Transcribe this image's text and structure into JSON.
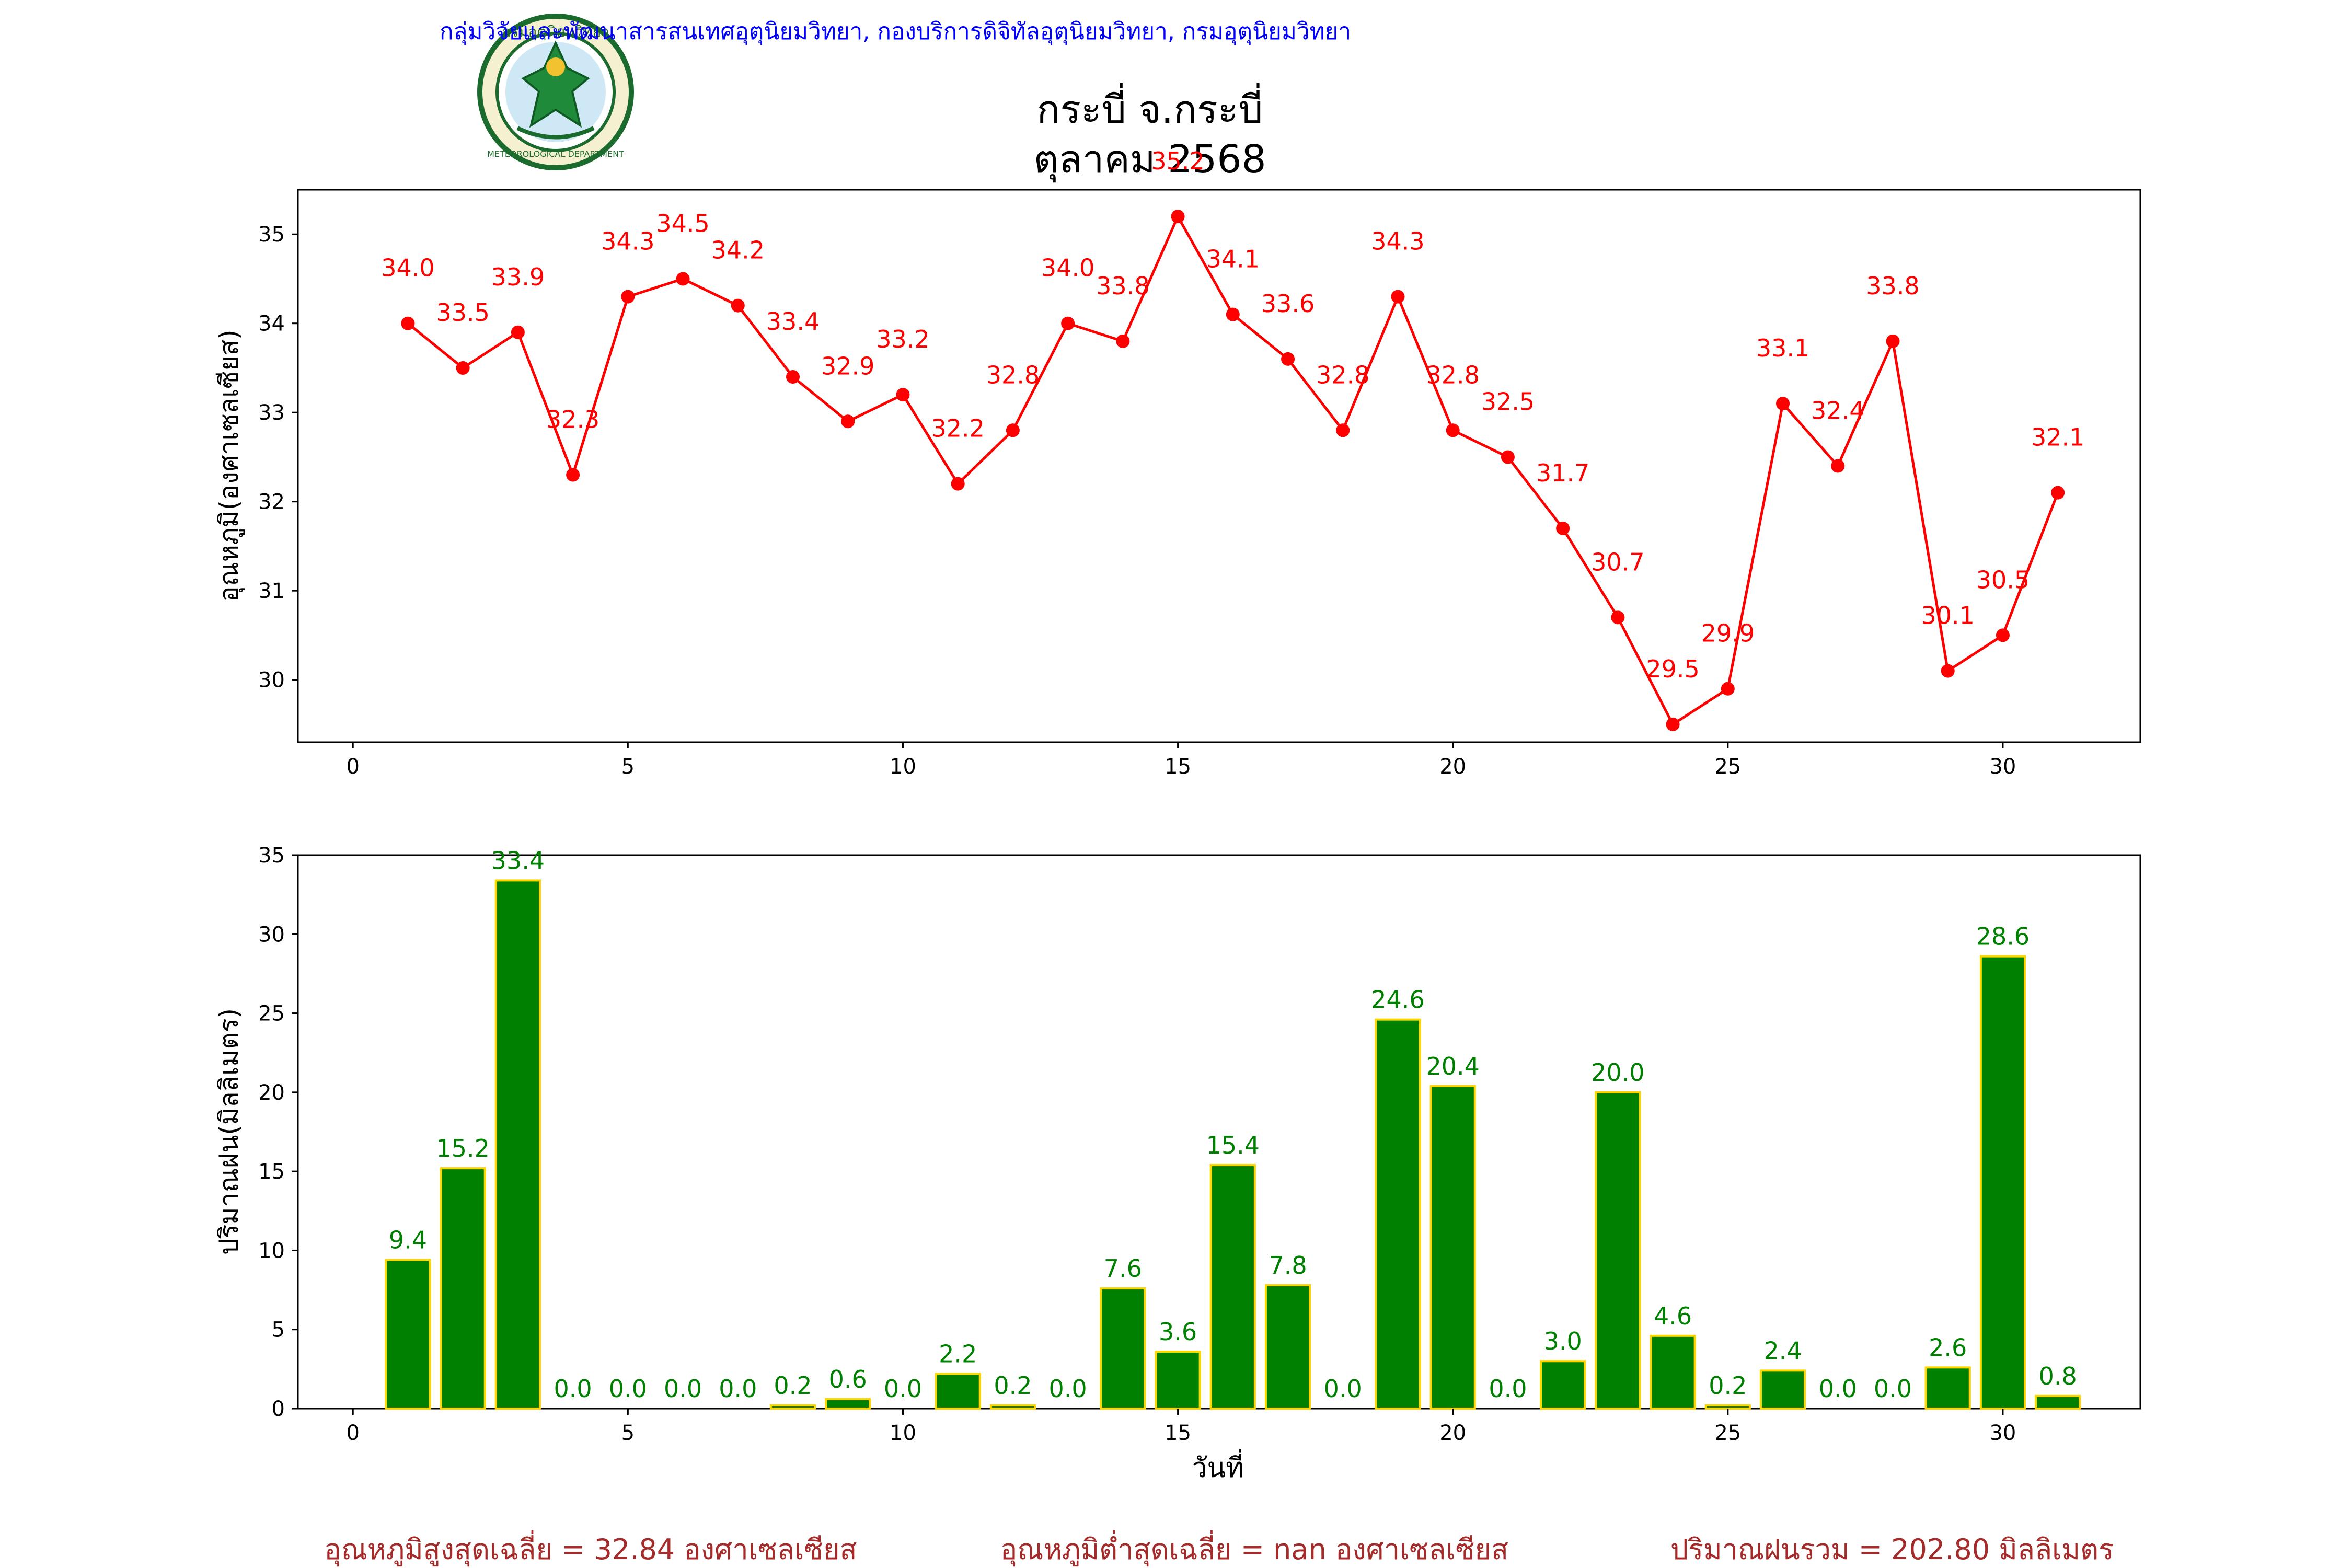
{
  "header": {
    "organization": "กลุ่มวิจัยและพัฒนาสารสนเทศอุตุนิยมวิทยา, กองบริการดิจิทัลอุตุนิยมวิทยา, กรมอุตุนิยมวิทยา",
    "station": "กระบี่ จ.กระบี่",
    "period": "ตุลาคม 2568",
    "logo_text_top": "กรมอุตุนิยมวิทยา",
    "logo_text_bottom": "METEOROLOGICAL DEPARTMENT"
  },
  "colors": {
    "header_text": "#0000ff",
    "temperature": "#ff0000",
    "rain_bar": "#008000",
    "rain_edge": "#ffd700",
    "rain_label": "#008000",
    "summary": "#a52a2a"
  },
  "chart_data": [
    {
      "type": "line",
      "ylabel": "อุณหภูมิ(องศาเซลเซียส)",
      "xlabel": "",
      "xlim": [
        -1,
        32.5
      ],
      "ylim": [
        29.3,
        35.5
      ],
      "xticks": [
        0,
        5,
        10,
        15,
        20,
        25,
        30
      ],
      "yticks": [
        30,
        31,
        32,
        33,
        34,
        35
      ],
      "x": [
        1,
        2,
        3,
        4,
        5,
        6,
        7,
        8,
        9,
        10,
        11,
        12,
        13,
        14,
        15,
        16,
        17,
        18,
        19,
        20,
        21,
        22,
        23,
        24,
        25,
        26,
        27,
        28,
        29,
        30,
        31
      ],
      "values": [
        34.0,
        33.5,
        33.9,
        32.3,
        34.3,
        34.5,
        34.2,
        33.4,
        32.9,
        33.2,
        32.2,
        32.8,
        34.0,
        33.8,
        35.2,
        34.1,
        33.6,
        32.8,
        34.3,
        32.8,
        32.5,
        31.7,
        30.7,
        29.5,
        29.9,
        33.1,
        32.4,
        33.8,
        30.1,
        30.5,
        32.1
      ],
      "labels": [
        "34.0",
        "33.5",
        "33.9",
        "32.3",
        "34.3",
        "34.5",
        "34.2",
        "33.4",
        "32.9",
        "33.2",
        "32.2",
        "32.8",
        "34.0",
        "33.8",
        "35.2",
        "34.1",
        "33.6",
        "32.8",
        "34.3",
        "32.8",
        "32.5",
        "31.7",
        "30.7",
        "29.5",
        "29.9",
        "33.1",
        "32.4",
        "33.8",
        "30.1",
        "30.5",
        "32.1"
      ],
      "grid": false
    },
    {
      "type": "bar",
      "ylabel": "ปริมาณฝน(มิลลิเมตร)",
      "xlabel": "วันที่",
      "xlim": [
        -1,
        32.5
      ],
      "ylim": [
        0,
        35
      ],
      "xticks": [
        0,
        5,
        10,
        15,
        20,
        25,
        30
      ],
      "yticks": [
        0,
        5,
        10,
        15,
        20,
        25,
        30,
        35
      ],
      "x": [
        1,
        2,
        3,
        4,
        5,
        6,
        7,
        8,
        9,
        10,
        11,
        12,
        13,
        14,
        15,
        16,
        17,
        18,
        19,
        20,
        21,
        22,
        23,
        24,
        25,
        26,
        27,
        28,
        29,
        30,
        31
      ],
      "values": [
        9.4,
        15.2,
        33.4,
        0.0,
        0.0,
        0.0,
        0.0,
        0.2,
        0.6,
        0.0,
        2.2,
        0.2,
        0.0,
        7.6,
        3.6,
        15.4,
        7.8,
        0.0,
        24.6,
        20.4,
        0.0,
        3.0,
        20.0,
        4.6,
        0.2,
        2.4,
        0.0,
        0.0,
        2.6,
        28.6,
        0.8
      ],
      "labels": [
        "9.4",
        "15.2",
        "33.4",
        "0.0",
        "0.0",
        "0.0",
        "0.0",
        "0.2",
        "0.6",
        "0.0",
        "2.2",
        "0.2",
        "0.0",
        "7.6",
        "3.6",
        "15.4",
        "7.8",
        "0.0",
        "24.6",
        "20.4",
        "0.0",
        "3.0",
        "20.0",
        "4.6",
        "0.2",
        "2.4",
        "0.0",
        "0.0",
        "2.6",
        "28.6",
        "0.8"
      ],
      "grid": false
    }
  ],
  "summary": {
    "avg_max": "อุณหภูมิสูงสุดเฉลี่ย = 32.84 องศาเซลเซียส",
    "avg_min": "อุณหภูมิต่ำสุดเฉลี่ย = nan องศาเซลเซียส",
    "total_rain": "ปริมาณฝนรวม = 202.80 มิลลิเมตร"
  }
}
